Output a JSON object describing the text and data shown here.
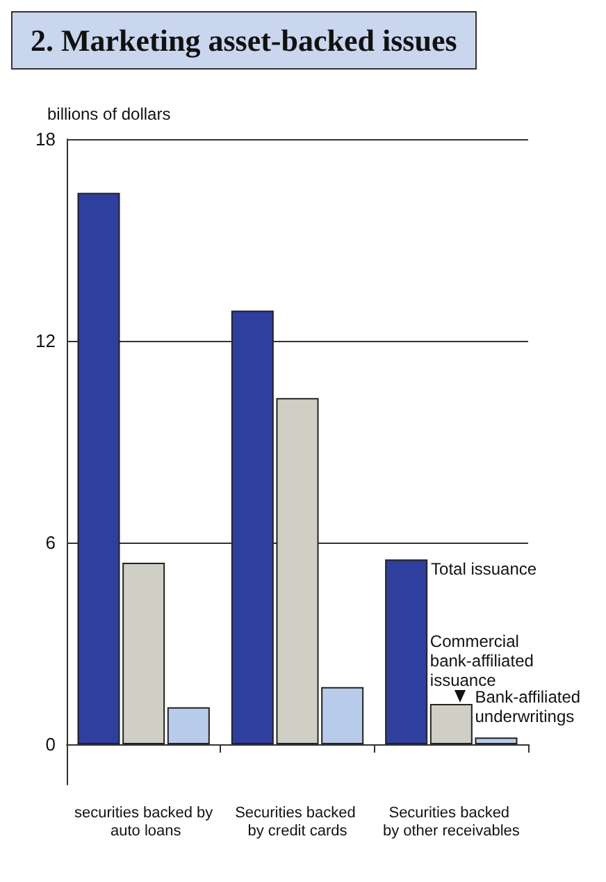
{
  "chart_data": {
    "type": "bar",
    "title": "2. Marketing asset-backed issues",
    "ylabel": "billions of dollars",
    "categories": [
      "securities backed by auto loans",
      "Securities backed by credit cards",
      "Securities backed by other receivables"
    ],
    "series": [
      {
        "name": "Total issuance",
        "color": "#2e3f9e",
        "values": [
          16.4,
          12.9,
          5.5
        ]
      },
      {
        "name": "Commercial bank-affiliated issuance",
        "color": "#cfcfc6",
        "values": [
          5.4,
          10.3,
          1.2
        ]
      },
      {
        "name": "Bank-affiliated underwritings",
        "color": "#b9cbea",
        "values": [
          1.1,
          1.7,
          0.2
        ]
      }
    ],
    "ylim": [
      -1.2,
      18
    ],
    "yticks": [
      0,
      6,
      12,
      18
    ],
    "grid": "y",
    "legend": false
  }
}
